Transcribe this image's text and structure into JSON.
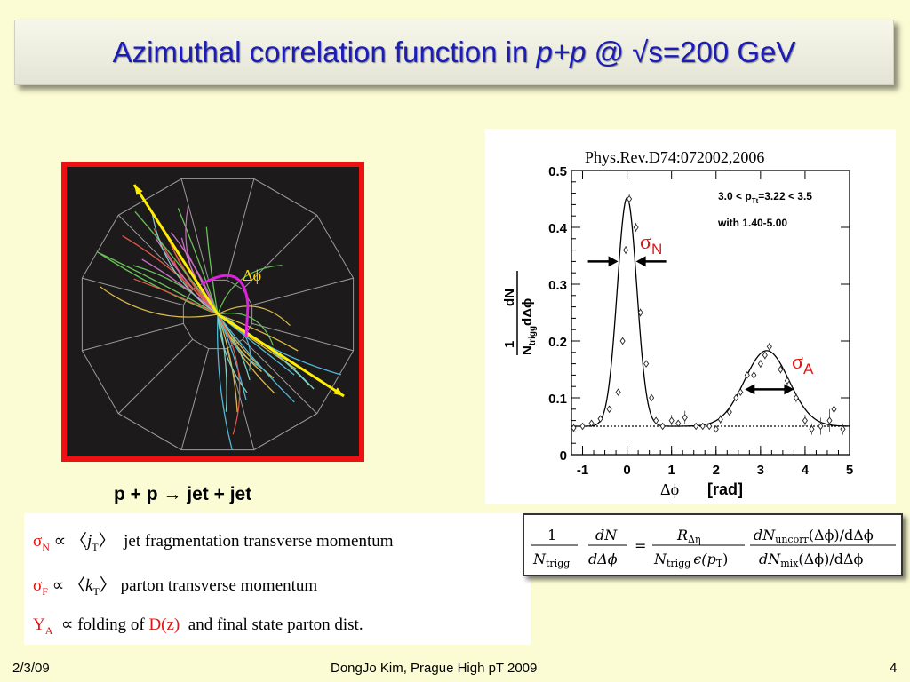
{
  "slide": {
    "title_prefix": "Azimuthal correlation function in ",
    "title_italic": "p+p",
    "title_suffix": " @ √s=200 GeV",
    "event_display": {
      "angle_label": "Δϕ"
    },
    "caption": "p + p → jet + jet",
    "footer": {
      "date": "2/3/09",
      "center": "DongJo Kim, Prague High pT 2009",
      "page": "4"
    }
  },
  "notes": {
    "sigma_n": {
      "symbol": "σ",
      "sub": "N",
      "prop": "∝",
      "quantity": "j",
      "quantity_sub": "T",
      "text": "jet fragmentation transverse momentum"
    },
    "sigma_f": {
      "symbol": "σ",
      "sub": "F",
      "prop": "∝",
      "quantity": "k",
      "quantity_sub": "T",
      "text": "parton transverse momentum"
    },
    "y_a": {
      "symbol": "Y",
      "sub": "A",
      "prop": "∝",
      "text1": "folding of",
      "dz": "D(z)",
      "text2": "and  final state parton dist."
    }
  },
  "formula": {
    "lhs_num": "1",
    "lhs_den": "N",
    "lhs_den_sub": "trigg",
    "d_num": "dN",
    "d_den": "dΔϕ",
    "r_num": "R",
    "r_num_sub": "Δη",
    "r_den": "N",
    "r_den_sub": "trigg",
    "r_den_eps": "ϵ(p",
    "r_den_eps_sub": "T",
    "r_den_close": ")",
    "c_num": "dN",
    "c_num_sub": "uncorr",
    "c_num_tail": "(Δϕ)/dΔϕ",
    "c_den": "dN",
    "c_den_sub": "mix",
    "c_den_tail": "(Δϕ)/dΔϕ"
  },
  "chart_data": {
    "type": "scatter",
    "reference": "Phys.Rev.D74:072002,2006",
    "annotation_line1": "3.0 < p",
    "annotation_line1_sub": "Tt",
    "annotation_line1_tail": "=3.22 < 3.5",
    "annotation_line2": "with 1.40-5.00",
    "sigma_n_label": "σ",
    "sigma_n_sub": "N",
    "sigma_a_label": "σ",
    "sigma_a_sub": "A",
    "ylabel_num": "1",
    "ylabel_num2": "dN",
    "ylabel_den": "N",
    "ylabel_den_sub": "trigg",
    "ylabel_den_tail": "dΔϕ",
    "xlabel_sym": "Δϕ",
    "xlabel_unit": "[rad]",
    "xlim": [
      -1.25,
      5.0
    ],
    "ylim": [
      0,
      0.5
    ],
    "xticks": [
      -1,
      0,
      1,
      2,
      3,
      4,
      5
    ],
    "yticks": [
      0,
      0.1,
      0.2,
      0.3,
      0.4,
      0.5
    ],
    "ytick_labels": [
      "0",
      "0.1",
      "0.2",
      "0.3",
      "0.4",
      "0.5"
    ],
    "background_level": 0.05,
    "points": [
      {
        "x": -1.2,
        "y": 0.047,
        "e": 0.004
      },
      {
        "x": -1.0,
        "y": 0.05,
        "e": 0.004
      },
      {
        "x": -0.8,
        "y": 0.055,
        "e": 0.004
      },
      {
        "x": -0.6,
        "y": 0.063,
        "e": 0.004
      },
      {
        "x": -0.4,
        "y": 0.08,
        "e": 0.005
      },
      {
        "x": -0.2,
        "y": 0.11,
        "e": 0.005
      },
      {
        "x": -0.1,
        "y": 0.2,
        "e": 0.006
      },
      {
        "x": -0.03,
        "y": 0.36,
        "e": 0.007
      },
      {
        "x": 0.05,
        "y": 0.45,
        "e": 0.008
      },
      {
        "x": 0.2,
        "y": 0.4,
        "e": 0.008
      },
      {
        "x": 0.3,
        "y": 0.25,
        "e": 0.007
      },
      {
        "x": 0.43,
        "y": 0.16,
        "e": 0.006
      },
      {
        "x": 0.55,
        "y": 0.1,
        "e": 0.005
      },
      {
        "x": 0.65,
        "y": 0.06,
        "e": 0.005
      },
      {
        "x": 0.8,
        "y": 0.05,
        "e": 0.004
      },
      {
        "x": 1.0,
        "y": 0.06,
        "e": 0.01
      },
      {
        "x": 1.15,
        "y": 0.055,
        "e": 0.005
      },
      {
        "x": 1.3,
        "y": 0.065,
        "e": 0.012
      },
      {
        "x": 1.55,
        "y": 0.05,
        "e": 0.005
      },
      {
        "x": 1.7,
        "y": 0.05,
        "e": 0.005
      },
      {
        "x": 1.85,
        "y": 0.05,
        "e": 0.005
      },
      {
        "x": 2.0,
        "y": 0.045,
        "e": 0.005
      },
      {
        "x": 2.1,
        "y": 0.062,
        "e": 0.008
      },
      {
        "x": 2.3,
        "y": 0.075,
        "e": 0.006
      },
      {
        "x": 2.45,
        "y": 0.1,
        "e": 0.006
      },
      {
        "x": 2.55,
        "y": 0.11,
        "e": 0.006
      },
      {
        "x": 2.7,
        "y": 0.14,
        "e": 0.006
      },
      {
        "x": 2.85,
        "y": 0.14,
        "e": 0.006
      },
      {
        "x": 3.0,
        "y": 0.16,
        "e": 0.007
      },
      {
        "x": 3.1,
        "y": 0.175,
        "e": 0.007
      },
      {
        "x": 3.2,
        "y": 0.19,
        "e": 0.007
      },
      {
        "x": 3.45,
        "y": 0.15,
        "e": 0.007
      },
      {
        "x": 3.6,
        "y": 0.13,
        "e": 0.007
      },
      {
        "x": 3.8,
        "y": 0.1,
        "e": 0.008
      },
      {
        "x": 4.0,
        "y": 0.06,
        "e": 0.01
      },
      {
        "x": 4.15,
        "y": 0.045,
        "e": 0.01
      },
      {
        "x": 4.35,
        "y": 0.05,
        "e": 0.015
      },
      {
        "x": 4.55,
        "y": 0.06,
        "e": 0.02
      },
      {
        "x": 4.65,
        "y": 0.08,
        "e": 0.02
      },
      {
        "x": 4.85,
        "y": 0.045,
        "e": 0.01
      }
    ],
    "fit": {
      "pedestal": 0.05,
      "near": {
        "amp": 0.402,
        "mean": 0.0,
        "sigma": 0.22
      },
      "away": {
        "amp": 0.133,
        "mean": 3.14,
        "sigma": 0.5
      }
    },
    "sigma_n_bracket": {
      "x1": -0.2,
      "x2": 0.2,
      "y": 0.34
    },
    "sigma_a_bracket": {
      "x1": 2.65,
      "x2": 3.75,
      "y": 0.115
    }
  }
}
